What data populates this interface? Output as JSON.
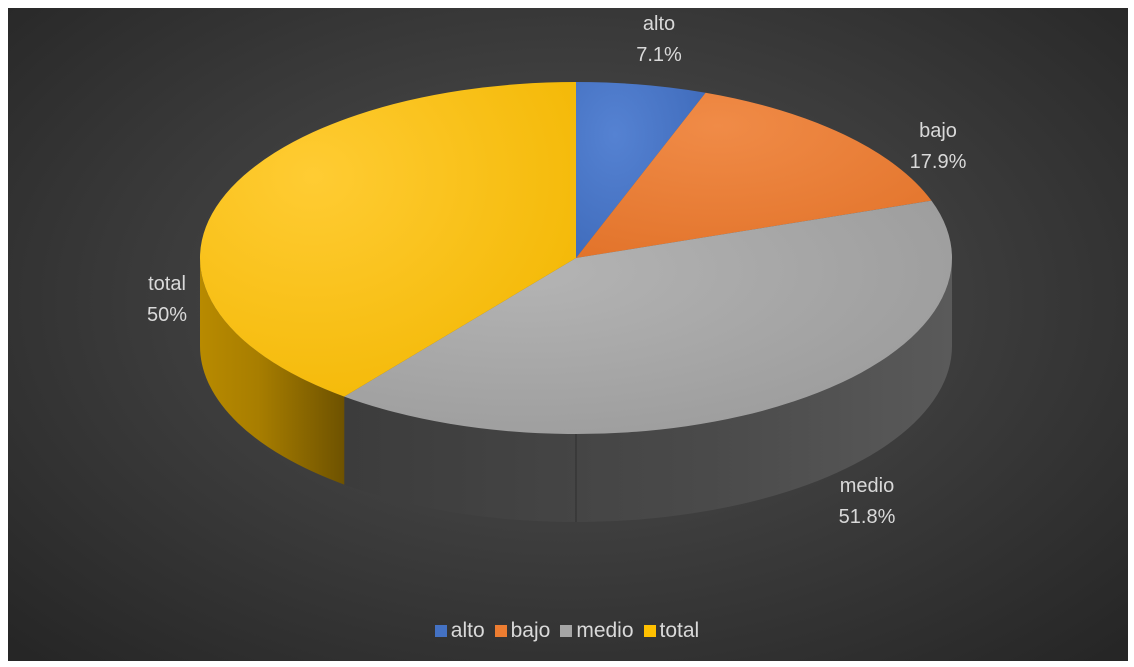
{
  "chart_data": {
    "type": "pie",
    "style": "3d",
    "categories": [
      "alto",
      "bajo",
      "medio",
      "total"
    ],
    "values": [
      7.1,
      17.9,
      51.8,
      50
    ],
    "data_labels": [
      "7.1%",
      "17.9%",
      "51.8%",
      "50%"
    ],
    "colors": [
      "#4472c4",
      "#ed7d31",
      "#a5a5a5",
      "#ffc000"
    ],
    "legend_position": "bottom",
    "title": ""
  }
}
